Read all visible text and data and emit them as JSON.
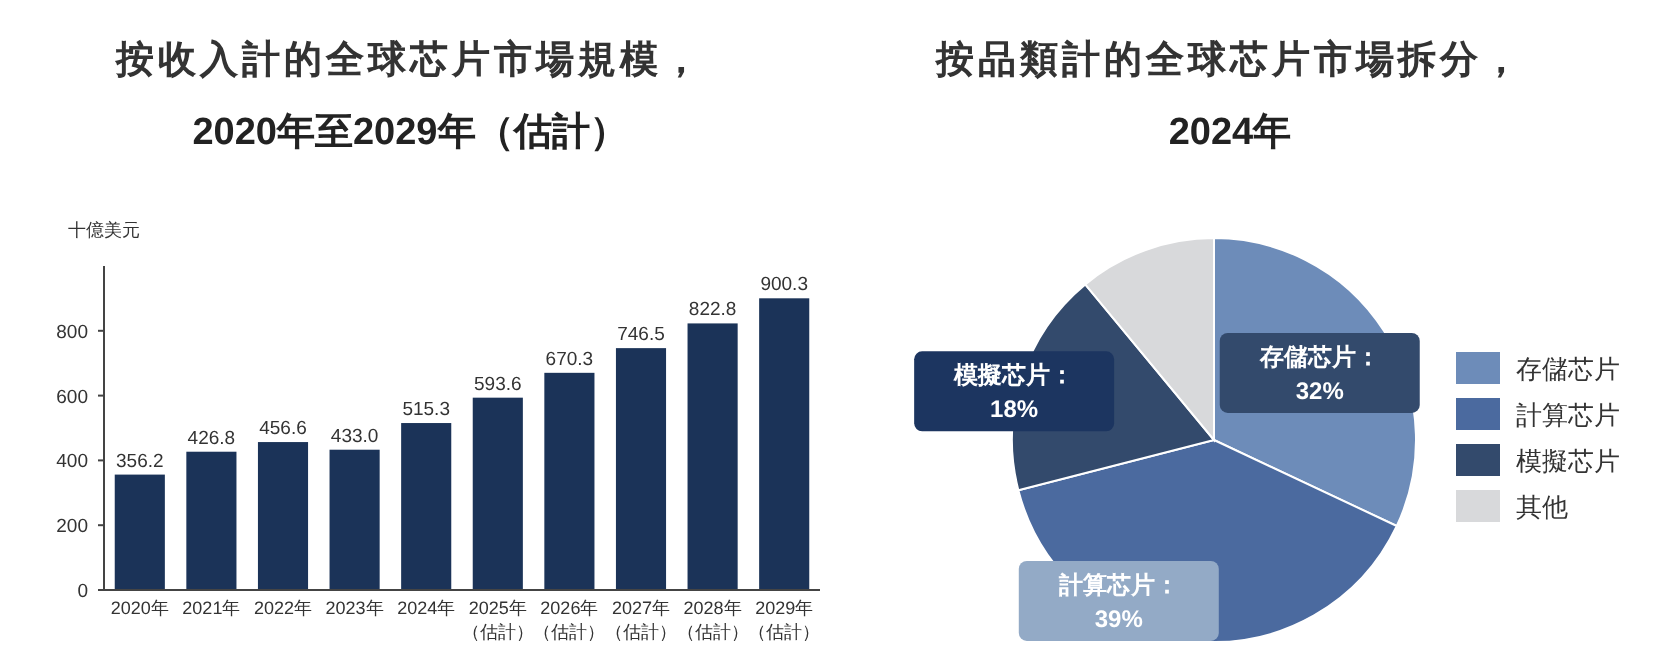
{
  "chart_data": [
    {
      "type": "bar",
      "title": "按收入計的全球芯片市場規模，",
      "subtitle": "2020年至2029年（估計）",
      "ylabel": "十億美元",
      "categories": [
        "2020年",
        "2021年",
        "2022年",
        "2023年",
        "2024年",
        "2025年（估計）",
        "2026年（估計）",
        "2027年（估計）",
        "2028年（估計）",
        "2029年（估計）"
      ],
      "values": [
        356.2,
        426.8,
        456.6,
        433.0,
        515.3,
        593.6,
        670.3,
        746.5,
        822.8,
        900.3
      ],
      "value_labels": [
        "356.2",
        "426.8",
        "456.6",
        "433.0",
        "515.3",
        "593.6",
        "670.3",
        "746.5",
        "822.8",
        "900.3"
      ],
      "color": "#1b3358",
      "ylim": [
        0,
        1000
      ],
      "yticks": [
        0,
        200,
        400,
        600,
        800
      ],
      "grid": false,
      "legend": false
    },
    {
      "type": "pie",
      "title": "按品類計的全球芯片市場拆分，",
      "subtitle": "2024年",
      "categories": [
        "存儲芯片",
        "計算芯片",
        "模擬芯片",
        "其他"
      ],
      "values": [
        32,
        39,
        18,
        11
      ],
      "colors": [
        "#6d8cb9",
        "#4b6a9f",
        "#334a6c",
        "#d8d9db"
      ],
      "value_labels": [
        "存儲芯片：\n32%",
        "計算芯片：\n39%",
        "模擬芯片：\n18%",
        null
      ],
      "legend": "right"
    }
  ]
}
